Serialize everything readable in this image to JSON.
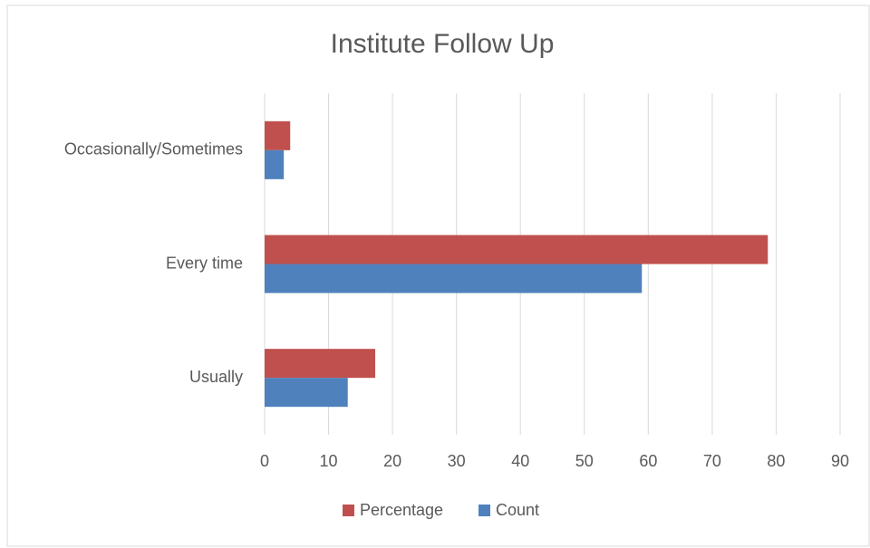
{
  "chart_data": {
    "type": "bar",
    "orientation": "horizontal",
    "title": "Institute Follow Up",
    "categories": [
      "Usually",
      "Every time",
      "Occasionally/Sometimes"
    ],
    "series": [
      {
        "name": "Percentage",
        "color": "#c0504d",
        "values": [
          17.3,
          78.7,
          4
        ]
      },
      {
        "name": "Count",
        "color": "#4f81bd",
        "values": [
          13,
          59,
          3
        ]
      }
    ],
    "xlim": [
      0,
      90
    ],
    "xticks": [
      0,
      10,
      20,
      30,
      40,
      50,
      60,
      70,
      80,
      90
    ],
    "grid": true,
    "legend": "bottom"
  }
}
